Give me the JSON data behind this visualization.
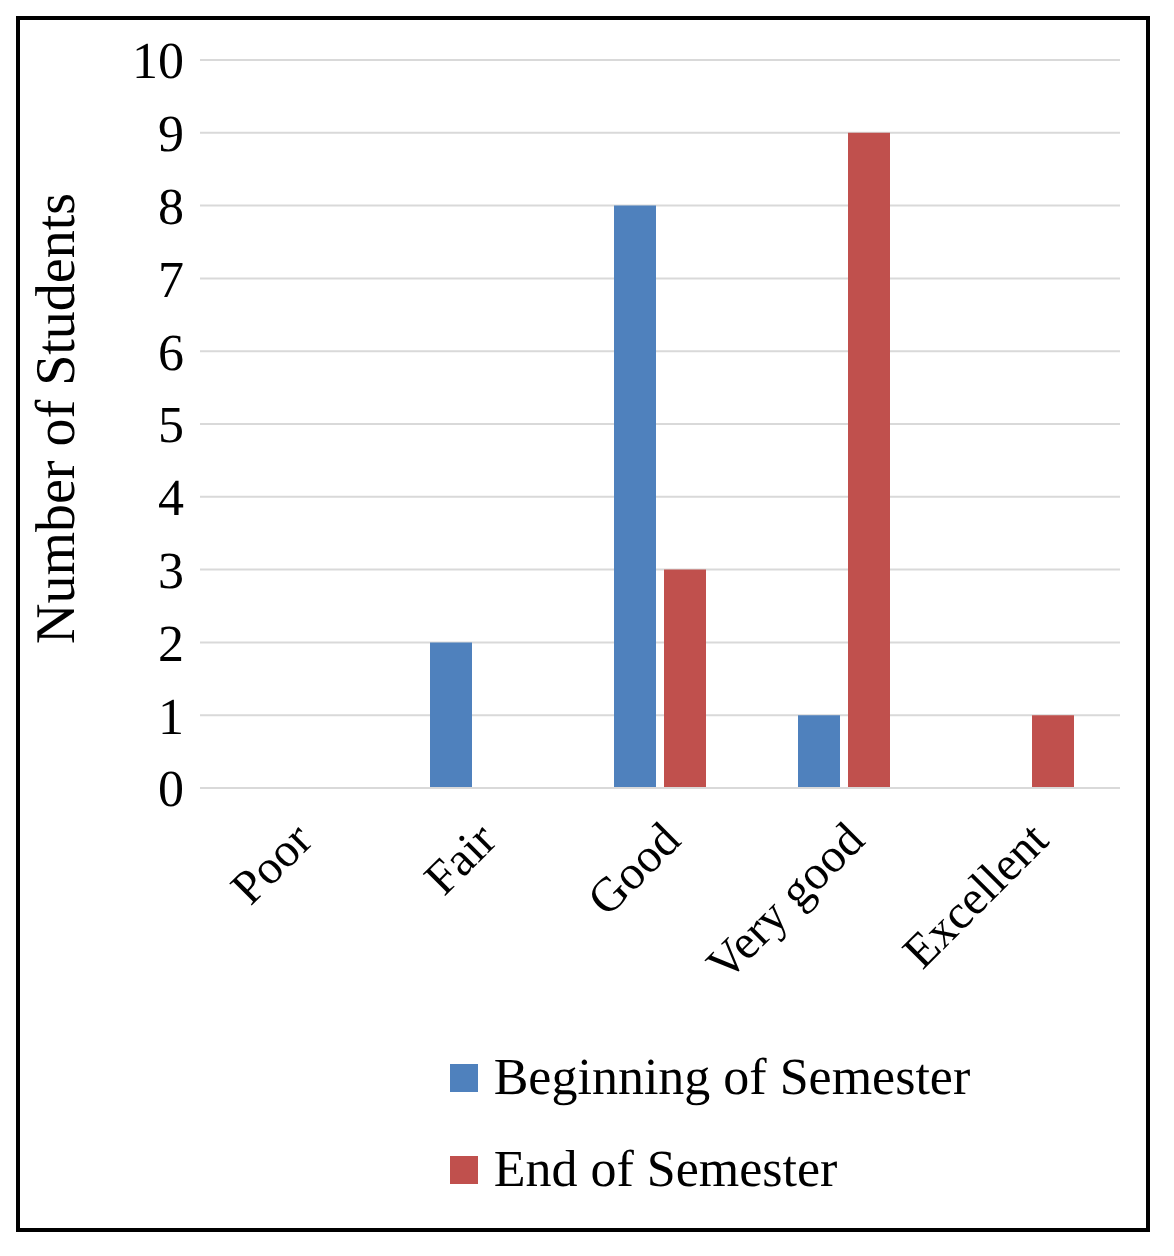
{
  "chart_data": {
    "type": "bar",
    "ylabel": "Number of Students",
    "categories": [
      "Poor",
      "Fair",
      "Good",
      "Very good",
      "Excellent"
    ],
    "series": [
      {
        "name": "Beginning of Semester",
        "color": "#4f81bd",
        "values": [
          0,
          2,
          8,
          1,
          0
        ]
      },
      {
        "name": "End of Semester",
        "color": "#c0504d",
        "values": [
          0,
          0,
          3,
          9,
          1
        ]
      }
    ],
    "ylim": [
      0,
      10
    ],
    "yticks": [
      0,
      1,
      2,
      3,
      4,
      5,
      6,
      7,
      8,
      9,
      10
    ],
    "grid": "y",
    "legend": "bottom"
  }
}
